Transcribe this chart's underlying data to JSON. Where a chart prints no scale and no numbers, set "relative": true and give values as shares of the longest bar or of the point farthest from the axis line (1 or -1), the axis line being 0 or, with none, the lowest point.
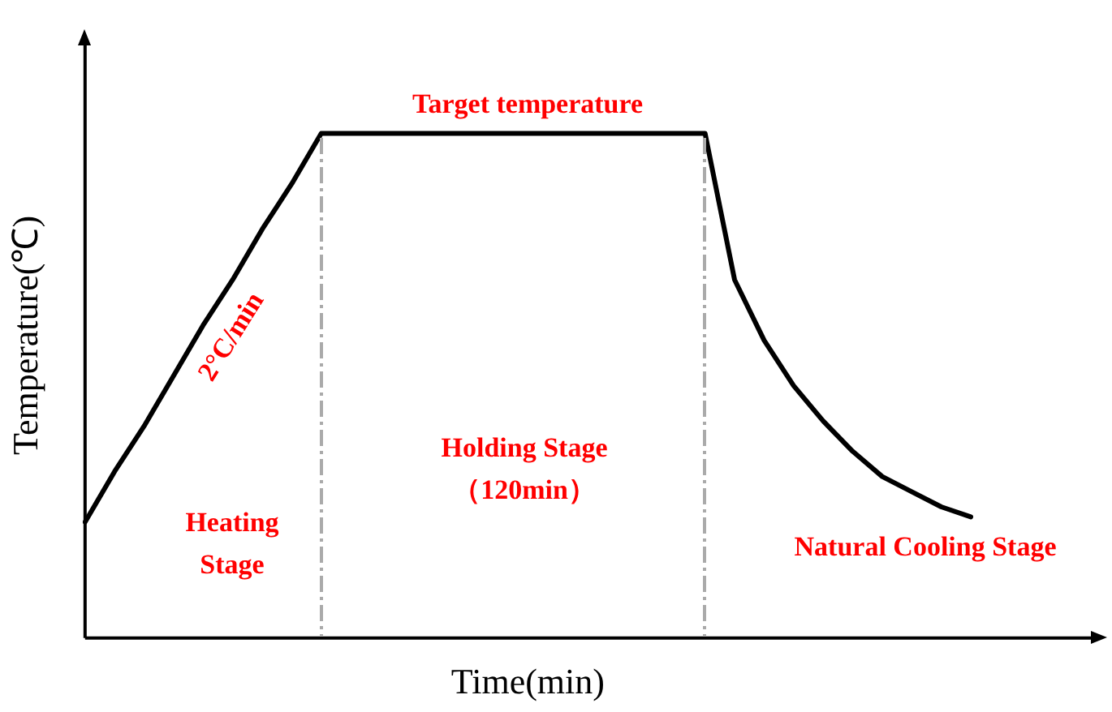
{
  "chart_data": {
    "type": "line",
    "relative": true,
    "xlabel": "Time(min)",
    "ylabel": "Temperature(℃)",
    "grid": false,
    "legend": false,
    "marker": "none",
    "line_style": "solid",
    "categories": [
      null,
      null,
      null,
      null,
      null,
      null,
      null,
      null,
      null,
      null,
      null,
      null,
      null,
      null,
      null,
      null,
      null,
      null,
      null,
      null,
      null,
      null,
      null,
      null,
      null,
      null,
      null,
      null,
      null,
      null,
      null
    ],
    "series": [
      {
        "color": "#000000",
        "values": [
          0.23,
          0.33,
          0.42,
          0.52,
          0.62,
          0.71,
          0.81,
          0.9,
          1,
          1,
          1,
          1,
          1,
          1,
          1,
          1,
          1,
          1,
          1,
          1,
          1,
          1,
          0.71,
          0.59,
          0.5,
          0.43,
          0.37,
          0.32,
          0.29,
          0.26,
          0.24
        ]
      }
    ],
    "annotations": [
      "Target temperature",
      "2°C/min",
      "Heating Stage",
      "Holding Stage （120min）",
      "Natural Cooling Stage"
    ]
  }
}
